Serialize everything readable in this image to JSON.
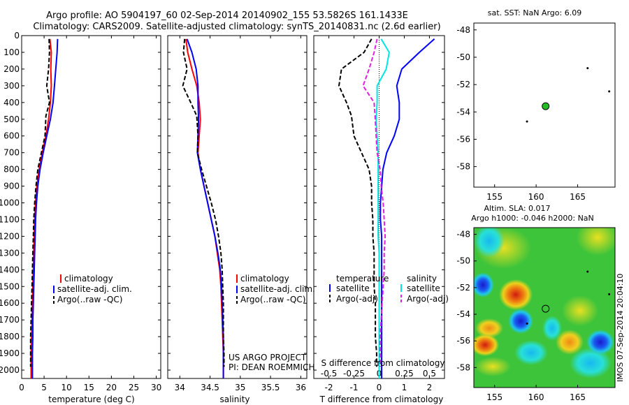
{
  "title_line1": "Argo profile: AO 5904197_60 02-Sep-2014 20140902_155 53.5826S 161.1433E",
  "title_line2": "Climatology: CARS2009. Satellite-adjusted climatology: synTS_20140831.nc (2.6d earlier)",
  "sst_title": "sat. SST: NaN Argo: 6.09",
  "sla_title1": "Altim. SLA: 0.017",
  "sla_title2": "Argo h1000: -0.046 h2000: NaN",
  "imos_stamp": "IMOS 07-Sep-2014 20:04:10",
  "project_line1": "US ARGO PROJECT",
  "project_line2": "PI: DEAN ROEMMICH",
  "colors": {
    "climatology": "#ff0000",
    "satellite": "#0000ff",
    "argo": "#000000",
    "salinity_satellite": "#00e5e5",
    "salinity_argo": "#e020e0",
    "float_position": "#22bb22"
  },
  "chart_data": [
    {
      "type": "line",
      "panel": "temperature",
      "xlabel": "temperature (deg C)",
      "xlim": [
        0,
        31
      ],
      "xticks": [
        0,
        5,
        10,
        15,
        20,
        25,
        30
      ],
      "ylim": [
        2050,
        0
      ],
      "yticks": [
        0,
        100,
        200,
        300,
        400,
        500,
        600,
        700,
        800,
        900,
        1000,
        1100,
        1200,
        1300,
        1400,
        1500,
        1600,
        1700,
        1800,
        1900,
        2000
      ],
      "legend": [
        "climatology",
        "satellite-adj. clim.",
        "Argo(..raw -QC)"
      ],
      "series": [
        {
          "name": "climatology",
          "style": "solid",
          "color": "#ff0000",
          "x": [
            6.3,
            6.6,
            6.5,
            6.6,
            6.4,
            6.0,
            5.4,
            4.6,
            3.9,
            3.4,
            3.1,
            2.9,
            2.8,
            2.7,
            2.6,
            2.5,
            2.4,
            2.3,
            2.2,
            2.1,
            2.1
          ],
          "y": [
            20,
            100,
            200,
            300,
            400,
            500,
            600,
            700,
            800,
            900,
            1000,
            1100,
            1200,
            1300,
            1400,
            1500,
            1600,
            1700,
            1800,
            1900,
            2050
          ]
        },
        {
          "name": "satellite-adj. clim.",
          "style": "solid",
          "color": "#0000ff",
          "x": [
            8.0,
            7.9,
            7.6,
            7.3,
            7.0,
            6.4,
            5.6,
            4.8,
            4.1,
            3.6,
            3.3,
            3.1,
            3.0,
            2.9,
            2.8,
            2.7,
            2.6,
            2.5,
            2.5,
            2.4,
            2.4
          ],
          "y": [
            20,
            100,
            200,
            300,
            400,
            500,
            600,
            700,
            800,
            900,
            1000,
            1100,
            1200,
            1300,
            1400,
            1500,
            1600,
            1700,
            1800,
            1900,
            2050
          ]
        },
        {
          "name": "Argo(..raw -QC)",
          "style": "dashed",
          "color": "#000000",
          "x": [
            6.1,
            6.2,
            6.0,
            5.6,
            6.2,
            5.4,
            5.2,
            4.4,
            3.6,
            3.2,
            2.9,
            2.7,
            2.6,
            2.5,
            2.4,
            2.3,
            2.2,
            2.1,
            2.0,
            2.0,
            2.0
          ],
          "y": [
            20,
            100,
            200,
            300,
            400,
            480,
            600,
            700,
            800,
            900,
            1000,
            1100,
            1200,
            1300,
            1400,
            1500,
            1600,
            1700,
            1800,
            1900,
            1980
          ]
        }
      ]
    },
    {
      "type": "line",
      "panel": "salinity",
      "xlabel": "salinity",
      "xlim": [
        33.8,
        36.1
      ],
      "xticks": [
        34,
        34.5,
        35,
        35.5,
        36
      ],
      "ylim": [
        2050,
        0
      ],
      "legend": [
        "climatology",
        "satellite-adj. clim.",
        "Argo(..raw -QC)"
      ],
      "series": [
        {
          "name": "climatology",
          "style": "solid",
          "color": "#ff0000",
          "x": [
            34.1,
            34.13,
            34.2,
            34.28,
            34.32,
            34.34,
            34.32,
            34.3,
            34.34,
            34.4,
            34.46,
            34.52,
            34.58,
            34.62,
            34.66,
            34.68,
            34.69,
            34.7,
            34.71,
            34.72,
            34.72
          ],
          "y": [
            20,
            100,
            200,
            300,
            400,
            500,
            600,
            700,
            800,
            900,
            1000,
            1100,
            1200,
            1300,
            1400,
            1500,
            1600,
            1700,
            1800,
            1900,
            2050
          ]
        },
        {
          "name": "satellite-adj. clim.",
          "style": "solid",
          "color": "#0000ff",
          "x": [
            34.12,
            34.2,
            34.27,
            34.3,
            34.3,
            34.31,
            34.3,
            34.29,
            34.34,
            34.4,
            34.46,
            34.52,
            34.58,
            34.63,
            34.67,
            34.69,
            34.7,
            34.71,
            34.72,
            34.72,
            34.72
          ],
          "y": [
            20,
            100,
            200,
            300,
            400,
            500,
            600,
            700,
            800,
            900,
            1000,
            1100,
            1200,
            1300,
            1400,
            1500,
            1600,
            1700,
            1800,
            1900,
            2050
          ]
        },
        {
          "name": "Argo(..raw -QC)",
          "style": "dashed",
          "color": "#000000",
          "x": [
            34.08,
            34.06,
            34.12,
            34.05,
            34.18,
            34.28,
            34.3,
            34.29,
            34.36,
            34.44,
            34.52,
            34.59,
            34.64,
            34.68,
            34.7,
            34.71,
            34.72,
            34.72,
            34.72,
            34.73,
            34.73
          ],
          "y": [
            20,
            100,
            200,
            300,
            400,
            480,
            600,
            700,
            800,
            900,
            1000,
            1100,
            1200,
            1300,
            1400,
            1500,
            1600,
            1700,
            1800,
            1900,
            1980
          ]
        }
      ]
    },
    {
      "type": "line",
      "panel": "difference from climatology",
      "xlabel": "T difference from climatology",
      "xlabel_top": "S difference from climatology",
      "xlim_T": [
        -2.6,
        2.6
      ],
      "xticks_T": [
        -2,
        -1,
        0,
        1,
        2
      ],
      "xlim_S": [
        -0.65,
        0.65
      ],
      "xticks_S": [
        -0.5,
        -0.25,
        0,
        0.25,
        0.5
      ],
      "ylim": [
        2050,
        0
      ],
      "legend_headers": [
        "temperature",
        "salinity"
      ],
      "legend": [
        "satellite",
        "Argo(-adj)",
        "satellite",
        "Argo(-adj)"
      ],
      "series": [
        {
          "name": "satellite",
          "variable": "temperature",
          "style": "solid",
          "color": "#0000ff",
          "x": [
            2.2,
            1.6,
            0.9,
            0.7,
            0.8,
            0.8,
            0.6,
            0.3,
            0.15,
            0.1,
            0.05,
            0.05,
            0.1,
            0.1,
            0.1,
            0.1,
            0.1,
            0.1,
            0.1,
            0.1,
            0.1
          ],
          "y": [
            20,
            100,
            200,
            300,
            400,
            500,
            600,
            700,
            800,
            900,
            1000,
            1100,
            1200,
            1300,
            1400,
            1500,
            1600,
            1700,
            1800,
            1900,
            2050
          ]
        },
        {
          "name": "Argo(-adj)",
          "variable": "temperature",
          "style": "dashed",
          "color": "#000000",
          "x": [
            -0.3,
            -0.6,
            -1.5,
            -1.6,
            -1.3,
            -1.1,
            -1.0,
            -0.7,
            -0.4,
            -0.3,
            -0.3,
            -0.25,
            -0.25,
            -0.2,
            -0.2,
            -0.2,
            -0.15,
            -0.15,
            -0.15,
            -0.1,
            -0.1
          ],
          "y": [
            20,
            100,
            200,
            300,
            400,
            480,
            600,
            700,
            800,
            900,
            1000,
            1100,
            1200,
            1300,
            1400,
            1500,
            1600,
            1700,
            1800,
            1900,
            1980
          ]
        },
        {
          "name": "satellite",
          "variable": "salinity",
          "style": "solid",
          "color": "#00e5e5",
          "x": [
            0.02,
            0.1,
            0.07,
            -0.02,
            -0.02,
            -0.03,
            -0.02,
            -0.01,
            -0.01,
            -0.01,
            -0.01,
            -0.01,
            -0.01,
            0.0,
            0.0,
            0.0,
            0.0,
            0.0,
            0.0,
            0.0,
            0.0
          ],
          "y": [
            20,
            100,
            200,
            300,
            400,
            500,
            600,
            700,
            800,
            900,
            1000,
            1100,
            1200,
            1300,
            1400,
            1500,
            1600,
            1700,
            1800,
            1900,
            2050
          ]
        },
        {
          "name": "Argo(-adj)",
          "variable": "salinity",
          "style": "dashed",
          "color": "#e020e0",
          "x": [
            -0.02,
            -0.05,
            -0.1,
            -0.16,
            -0.05,
            -0.04,
            -0.03,
            -0.02,
            0.01,
            0.02,
            0.04,
            0.05,
            0.06,
            0.05,
            0.05,
            0.04,
            0.03,
            0.02,
            0.01,
            0.01,
            0.01
          ],
          "y": [
            20,
            100,
            200,
            300,
            400,
            480,
            600,
            700,
            800,
            900,
            1000,
            1100,
            1200,
            1300,
            1400,
            1500,
            1600,
            1700,
            1800,
            1900,
            1980
          ]
        }
      ]
    },
    {
      "type": "scatter",
      "panel": "position map (SST)",
      "title": "sat. SST: NaN Argo: 6.09",
      "xlim": [
        152.5,
        169.5
      ],
      "xticks": [
        155,
        160,
        165
      ],
      "ylim": [
        -59.5,
        -47.5
      ],
      "yticks": [
        -48,
        -50,
        -52,
        -54,
        -56,
        -58
      ],
      "float_position": {
        "lon": 161.1433,
        "lat": -53.5826
      }
    },
    {
      "type": "heatmap",
      "panel": "altimetry SLA map",
      "title": "Altim. SLA: 0.017",
      "xlim": [
        152.5,
        169.5
      ],
      "xticks": [
        155,
        160,
        165
      ],
      "ylim": [
        -59.5,
        -47.5
      ],
      "yticks": [
        -48,
        -50,
        -52,
        -54,
        -56,
        -58
      ],
      "float_position": {
        "lon": 161.1433,
        "lat": -53.5826
      }
    }
  ]
}
